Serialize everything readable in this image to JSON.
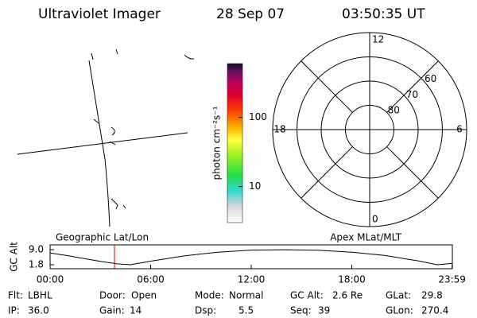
{
  "header": {
    "instrument": "Ultraviolet Imager",
    "date": "28 Sep 07",
    "time": "03:50:35 UT"
  },
  "colorbar": {
    "label": "photon cm⁻²s⁻¹",
    "log": true,
    "lim": [
      3,
      600
    ],
    "ticks": [
      10,
      100
    ]
  },
  "polar": {
    "rlim": [
      90,
      50
    ],
    "rings": [
      80,
      70,
      60,
      50
    ],
    "rticks": [
      80,
      70,
      60
    ],
    "mlt_ticks": [
      12,
      18,
      6,
      0
    ]
  },
  "strip": {
    "title_left": "Geographic Lat/Lon",
    "title_right": "Apex MLat/MLT",
    "ylabel": "GC Alt",
    "xlim": [
      0,
      24
    ],
    "ylim": [
      -0.1,
      11.3
    ],
    "xticks": [
      {
        "value": 0,
        "label": "00:00"
      },
      {
        "value": 6,
        "label": "06:00"
      },
      {
        "value": 12,
        "label": "12:00"
      },
      {
        "value": 18,
        "label": "18:00"
      },
      {
        "value": 23.983,
        "label": "23:59"
      }
    ],
    "yticks": [
      {
        "value": 9.0,
        "label": "9.0"
      },
      {
        "value": 1.8,
        "label": "1.8"
      }
    ],
    "x": [
      0,
      1,
      2,
      3,
      4,
      4.8,
      6,
      8,
      10,
      12,
      14,
      16,
      18,
      20,
      22,
      23.1,
      24
    ],
    "values": [
      7.4,
      6.2,
      4.8,
      3.4,
      2.2,
      1.8,
      3.5,
      6.0,
      7.8,
      8.8,
      9.0,
      8.7,
      7.8,
      6.2,
      3.6,
      1.8,
      2.5
    ],
    "line_color": "#000000",
    "current_time": 3.843,
    "marker_color": "#e00000"
  },
  "info": [
    [
      {
        "label": "Flt:",
        "value": "LBHL"
      },
      {
        "label": "Door:",
        "value": "Open"
      },
      {
        "label": "Mode:",
        "value": "Normal"
      },
      {
        "label": "GC Alt:",
        "value": "2.6 Re"
      },
      {
        "label": "GLat:",
        "value": 29.8
      }
    ],
    [
      {
        "label": "IP:",
        "value": "36.0"
      },
      {
        "label": "Gain:",
        "value": 14
      },
      {
        "label": "Dsp:",
        "value": 5.5
      },
      {
        "label": "Seq:",
        "value": 39
      },
      {
        "label": "GLon:",
        "value": 270.4
      }
    ]
  ]
}
